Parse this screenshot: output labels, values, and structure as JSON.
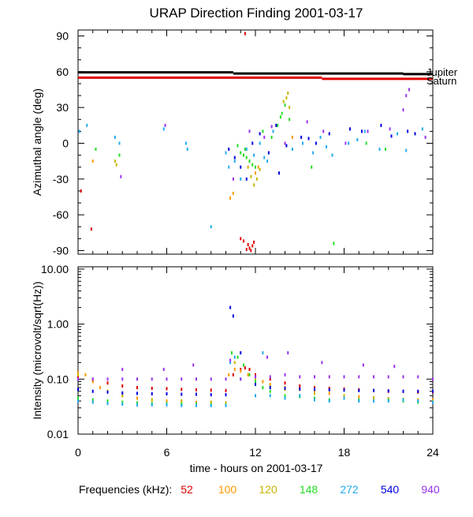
{
  "chart_data": {
    "title": "URAP Direction Finding  2001-03-17",
    "xlabel": "time - hours on 2001-03-17",
    "xlim": [
      0,
      24
    ],
    "xticks": [
      0,
      6,
      12,
      18,
      24
    ],
    "grid": false,
    "legend": {
      "label": "Frequencies (kHz):",
      "placement": "bottom",
      "entries": [
        {
          "name": "52",
          "color": "#dd0000"
        },
        {
          "name": "100",
          "color": "#ff9900"
        },
        {
          "name": "120",
          "color": "#c8b400"
        },
        {
          "name": "148",
          "color": "#22dd22"
        },
        {
          "name": "272",
          "color": "#22aaee"
        },
        {
          "name": "540",
          "color": "#0000dd"
        },
        {
          "name": "940",
          "color": "#9933ee"
        }
      ]
    },
    "panels": [
      {
        "id": "azimuth",
        "type": "scatter",
        "ylabel": "Azimuthal angle (deg)",
        "ylim": [
          -93,
          95
        ],
        "yticks": [
          -90,
          -60,
          -30,
          0,
          30,
          60,
          90
        ],
        "scale": "linear",
        "reference_lines": [
          {
            "name": "Jupiter",
            "color": "#000000",
            "segments": [
              [
                0,
                10.5,
                59.5
              ],
              [
                10.5,
                22,
                58.5
              ],
              [
                22,
                24,
                58
              ]
            ]
          },
          {
            "name": "Saturn",
            "color": "#dd0000",
            "segments": [
              [
                0,
                16.5,
                55
              ],
              [
                16.5,
                24,
                54
              ]
            ]
          }
        ],
        "series": [
          {
            "name": "52",
            "color": "#dd0000",
            "x": [
              11.3,
              11.5,
              11.6,
              11.8,
              11.9,
              11.4,
              11.7,
              0.9,
              0.2,
              11.0,
              11.2
            ],
            "y": [
              92,
              -85,
              -88,
              -86,
              -83,
              -89,
              -90,
              -72,
              -40,
              -80,
              -82
            ]
          },
          {
            "name": "100",
            "color": "#ff9900",
            "x": [
              1.0,
              10.3,
              10.5,
              12.0,
              12.2,
              14.5
            ],
            "y": [
              -15,
              -46,
              -42,
              -25,
              -20,
              5
            ]
          },
          {
            "name": "120",
            "color": "#c8b400",
            "x": [
              2.6,
              11.5,
              11.7,
              11.9,
              12.1,
              12.3,
              13.9,
              14.1,
              14.2,
              14.3,
              2.5
            ],
            "y": [
              -18,
              -20,
              -28,
              -35,
              -30,
              -22,
              35,
              38,
              42,
              30,
              -15
            ]
          },
          {
            "name": "148",
            "color": "#22dd22",
            "x": [
              1.2,
              2.8,
              10.8,
              11.0,
              11.2,
              11.4,
              11.6,
              11.8,
              12.0,
              13.1,
              13.5,
              13.8,
              14.0,
              14.3,
              15.8,
              17.3,
              19.5,
              20.8,
              13.7,
              11.3,
              12.5
            ],
            "y": [
              -5,
              -10,
              -2,
              -8,
              -10,
              -12,
              -15,
              -18,
              -20,
              5,
              15,
              25,
              32,
              20,
              -20,
              -84,
              0,
              -5,
              22,
              -5,
              10
            ]
          },
          {
            "name": "272",
            "color": "#22aaee",
            "x": [
              0.1,
              0.6,
              2.5,
              2.8,
              5.8,
              7.3,
              7.4,
              9.0,
              10.0,
              10.6,
              11.0,
              11.4,
              11.9,
              12.3,
              12.8,
              13.2,
              14.5,
              15.2,
              15.9,
              16.4,
              17.2,
              18.3,
              19.4,
              20.4,
              21.6,
              23.3,
              10.2,
              12.6,
              16.8,
              18.9,
              22.2
            ],
            "y": [
              10,
              15,
              5,
              0,
              12,
              0,
              -5,
              -70,
              -8,
              -15,
              -30,
              -5,
              -10,
              0,
              -15,
              10,
              -5,
              0,
              -8,
              5,
              -10,
              0,
              10,
              -5,
              8,
              12,
              -20,
              -12,
              -3,
              3,
              -6
            ]
          },
          {
            "name": "540",
            "color": "#0000dd",
            "x": [
              10.2,
              10.6,
              11.0,
              11.4,
              11.8,
              12.3,
              12.9,
              13.4,
              14.1,
              15.1,
              16.1,
              17.0,
              18.4,
              19.2,
              20.5,
              22.3,
              13.6,
              15.6,
              21.2,
              22.8
            ],
            "y": [
              -5,
              -12,
              -20,
              -30,
              0,
              8,
              -8,
              15,
              -2,
              5,
              0,
              8,
              12,
              10,
              15,
              10,
              -25,
              4,
              6,
              8
            ]
          },
          {
            "name": "940",
            "color": "#9933ee",
            "x": [
              2.9,
              5.9,
              10.5,
              11.6,
              12.6,
              14.0,
              15.5,
              16.6,
              18.1,
              19.6,
              21.1,
              22.0,
              22.2,
              22.4,
              23.5,
              13.1
            ],
            "y": [
              -28,
              15,
              -30,
              10,
              5,
              0,
              18,
              10,
              0,
              10,
              12,
              28,
              40,
              45,
              5,
              14
            ]
          }
        ]
      },
      {
        "id": "intensity",
        "type": "scatter",
        "ylabel": "Intensity (microvolt/sqrt(Hz))",
        "ylim": [
          0.01,
          11
        ],
        "yticks": [
          0.01,
          0.1,
          1.0,
          10.0
        ],
        "ytick_labels": [
          "0.01",
          "0.10",
          "1.00",
          "10.00"
        ],
        "scale": "log",
        "series": [
          {
            "name": "52",
            "color": "#dd0000",
            "x": [
              0,
              1,
              2,
              3,
              4,
              5,
              6,
              7,
              8,
              9,
              10,
              10.5,
              11,
              11.3,
              11.6,
              12,
              13,
              14,
              15,
              16,
              17,
              18,
              19,
              20,
              21,
              22,
              23,
              24
            ],
            "y": [
              0.11,
              0.095,
              0.085,
              0.075,
              0.07,
              0.068,
              0.067,
              0.065,
              0.064,
              0.063,
              0.062,
              0.12,
              0.15,
              0.16,
              0.15,
              0.12,
              0.1,
              0.085,
              0.075,
              0.07,
              0.068,
              0.066,
              0.064,
              0.062,
              0.06,
              0.06,
              0.058,
              0.058
            ]
          },
          {
            "name": "100",
            "color": "#ff9900",
            "x": [
              0,
              0.5,
              1,
              1.5,
              2,
              3,
              4,
              5,
              6,
              7,
              8,
              9,
              10,
              10.2,
              10.6,
              11,
              11.5,
              12,
              12.5,
              13,
              14,
              15,
              16,
              17,
              18,
              19,
              20,
              21,
              22,
              23,
              24
            ],
            "y": [
              0.13,
              0.12,
              0.09,
              0.07,
              0.06,
              0.05,
              0.045,
              0.042,
              0.04,
              0.04,
              0.038,
              0.038,
              0.037,
              0.12,
              0.15,
              0.14,
              0.12,
              0.1,
              0.09,
              0.08,
              0.07,
              0.065,
              0.06,
              0.055,
              0.05,
              0.048,
              0.046,
              0.044,
              0.043,
              0.042,
              0.042
            ]
          },
          {
            "name": "120",
            "color": "#c8b400",
            "x": [
              0,
              1,
              2,
              3,
              5,
              7,
              9,
              10,
              10.6,
              11.2,
              12,
              13,
              14,
              16,
              18,
              20,
              22,
              24
            ],
            "y": [
              0.12,
              0.1,
              0.06,
              0.05,
              0.042,
              0.04,
              0.038,
              0.037,
              0.2,
              0.18,
              0.1,
              0.075,
              0.065,
              0.055,
              0.05,
              0.045,
              0.043,
              0.04
            ]
          },
          {
            "name": "148",
            "color": "#22dd22",
            "x": [
              0,
              1,
              2,
              3,
              4,
              5,
              6,
              7,
              8,
              9,
              10,
              10.4,
              10.8,
              11.2,
              11.6,
              12,
              12.5,
              13,
              14,
              15,
              16,
              17,
              18,
              19,
              20,
              21,
              22,
              23,
              24
            ],
            "y": [
              0.045,
              0.042,
              0.04,
              0.038,
              0.037,
              0.036,
              0.036,
              0.035,
              0.035,
              0.034,
              0.034,
              0.3,
              0.25,
              0.18,
              0.12,
              0.09,
              0.07,
              0.06,
              0.05,
              0.048,
              0.045,
              0.042,
              0.045,
              0.042,
              0.04,
              0.042,
              0.04,
              0.038,
              0.038
            ]
          },
          {
            "name": "272",
            "color": "#22aaee",
            "x": [
              0,
              1,
              2,
              3,
              4,
              5,
              6,
              7,
              8,
              9,
              10,
              10.3,
              10.6,
              11,
              12,
              12.5,
              13,
              14,
              15,
              16,
              17,
              18,
              19,
              20,
              21,
              22,
              23,
              24
            ],
            "y": [
              0.04,
              0.038,
              0.036,
              0.035,
              0.034,
              0.034,
              0.034,
              0.033,
              0.033,
              0.033,
              0.033,
              0.2,
              0.25,
              0.1,
              0.05,
              0.3,
              0.05,
              0.045,
              0.05,
              0.042,
              0.04,
              0.045,
              0.04,
              0.04,
              0.04,
              0.042,
              0.04,
              0.038
            ]
          },
          {
            "name": "540",
            "color": "#0000dd",
            "x": [
              0,
              1,
              2,
              3,
              4,
              5,
              6,
              7,
              8,
              9,
              10,
              10.3,
              10.5,
              11,
              12,
              13,
              14,
              15,
              16,
              17,
              18,
              19,
              20,
              21,
              22,
              23,
              24
            ],
            "y": [
              0.065,
              0.06,
              0.058,
              0.056,
              0.055,
              0.054,
              0.054,
              0.053,
              0.053,
              0.052,
              0.052,
              2.0,
              1.4,
              0.3,
              0.08,
              0.07,
              0.068,
              0.066,
              0.065,
              0.064,
              0.063,
              0.062,
              0.062,
              0.061,
              0.06,
              0.06,
              0.06
            ]
          },
          {
            "name": "940",
            "color": "#9933ee",
            "x": [
              0,
              1,
              2,
              3,
              4,
              5,
              6,
              7,
              8,
              9,
              10,
              11,
              12,
              13,
              14,
              15,
              16,
              17,
              18,
              19,
              20,
              21,
              22,
              23,
              24,
              3.0,
              5.8,
              7.8,
              10.3,
              12.8,
              14.2,
              16.5,
              19.3,
              21.4
            ],
            "y": [
              0.1,
              0.1,
              0.1,
              0.1,
              0.1,
              0.1,
              0.1,
              0.1,
              0.1,
              0.1,
              0.1,
              0.1,
              0.11,
              0.11,
              0.12,
              0.11,
              0.11,
              0.11,
              0.11,
              0.11,
              0.11,
              0.11,
              0.11,
              0.11,
              0.1,
              0.15,
              0.15,
              0.18,
              0.22,
              0.25,
              0.3,
              0.2,
              0.18,
              0.17
            ]
          }
        ]
      }
    ]
  }
}
